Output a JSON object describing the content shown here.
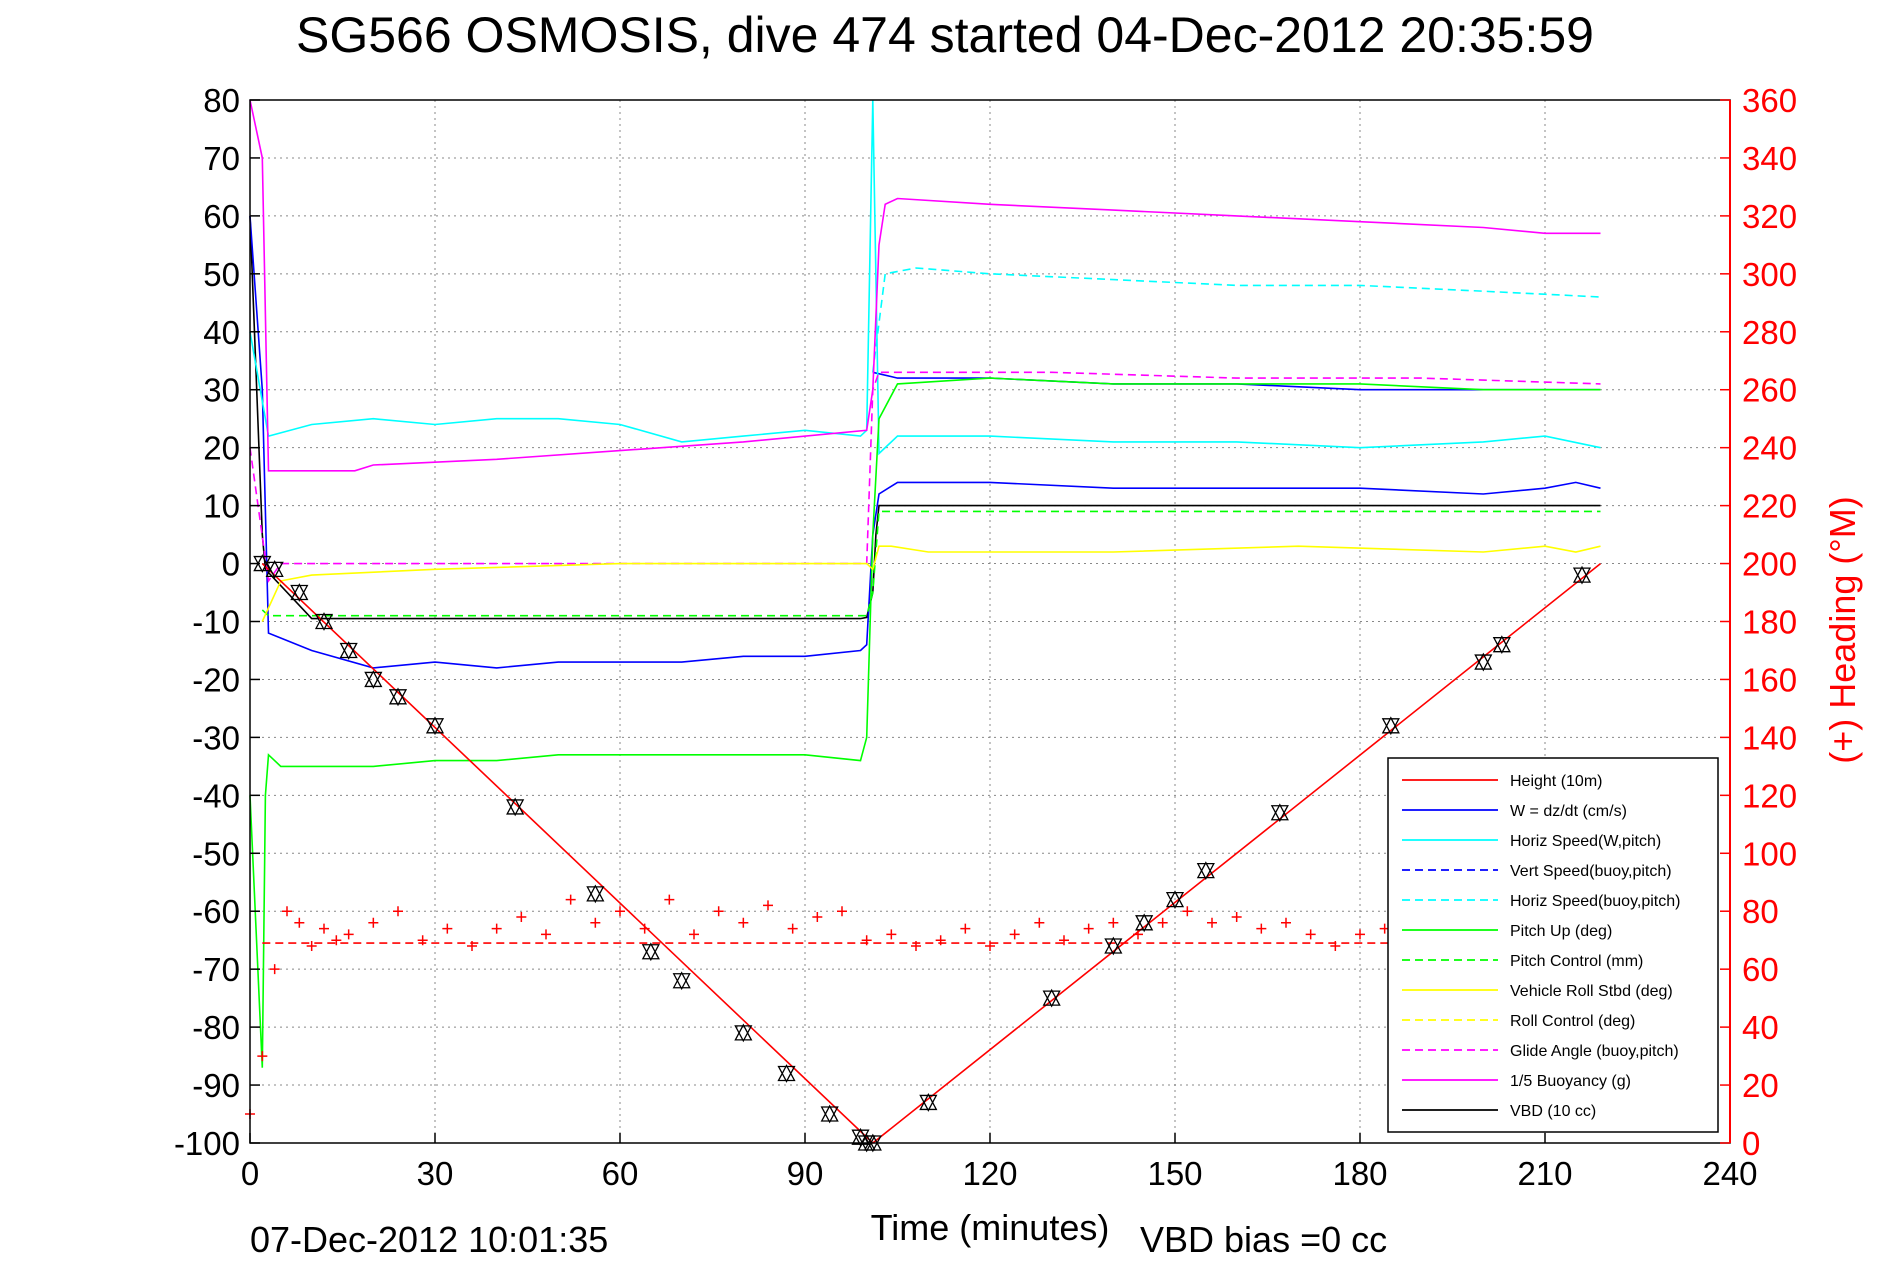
{
  "chart_data": {
    "type": "line",
    "title": "SG566 OSMOSIS, dive 474 started 04-Dec-2012 20:35:59",
    "xlabel": "Time (minutes)",
    "ylabel": "",
    "y2label": "(+) Heading (°M)",
    "xlim": [
      0,
      240
    ],
    "ylim": [
      -100,
      80
    ],
    "y2lim": [
      0,
      360
    ],
    "x_ticks": [
      "0",
      "30",
      "60",
      "90",
      "120",
      "150",
      "180",
      "210",
      "240"
    ],
    "y_ticks": [
      "80",
      "70",
      "60",
      "50",
      "40",
      "30",
      "20",
      "10",
      "0",
      "-10",
      "-20",
      "-30",
      "-40",
      "-50",
      "-60",
      "-70",
      "-80",
      "-90",
      "-100"
    ],
    "y2_ticks": [
      "360",
      "340",
      "320",
      "300",
      "280",
      "260",
      "240",
      "220",
      "200",
      "180",
      "160",
      "140",
      "120",
      "100",
      "80",
      "60",
      "40",
      "20",
      "0"
    ],
    "grid": true,
    "legend_position": "lower-right",
    "legend": [
      {
        "label": "Height (10m)",
        "color": "#ff0000",
        "style": "solid"
      },
      {
        "label": "W = dz/dt (cm/s)",
        "color": "#0000ff",
        "style": "solid"
      },
      {
        "label": "Horiz Speed(W,pitch)",
        "color": "#00ffff",
        "style": "solid"
      },
      {
        "label": "Vert Speed(buoy,pitch)",
        "color": "#0000ff",
        "style": "dashed"
      },
      {
        "label": "Horiz Speed(buoy,pitch)",
        "color": "#00ffff",
        "style": "dashed"
      },
      {
        "label": "Pitch Up (deg)",
        "color": "#00ff00",
        "style": "solid"
      },
      {
        "label": "Pitch Control (mm)",
        "color": "#00ff00",
        "style": "dashed"
      },
      {
        "label": "Vehicle Roll Stbd (deg)",
        "color": "#ffff00",
        "style": "solid"
      },
      {
        "label": "Roll Control (deg)",
        "color": "#ffff00",
        "style": "dashed"
      },
      {
        "label": "Glide Angle (buoy,pitch)",
        "color": "#ff00ff",
        "style": "dashed"
      },
      {
        "label": "1/5 Buoyancy (g)",
        "color": "#ff00ff",
        "style": "solid"
      },
      {
        "label": "VBD (10 cc)",
        "color": "#000000",
        "style": "solid"
      }
    ],
    "series": [
      {
        "x": [
          0,
          2,
          2.5,
          10,
          30,
          50,
          70,
          90,
          99,
          100,
          101,
          101.5,
          102,
          105,
          130,
          160,
          190,
          219
        ],
        "y": [
          60,
          5,
          -1,
          -9.5,
          -9.5,
          -9.5,
          -9.5,
          -9.5,
          -9.5,
          -9.3,
          -5,
          5,
          10,
          10,
          10,
          10,
          10,
          10
        ],
        "color": "#000000",
        "style": "solid"
      },
      {
        "x": [
          0,
          2,
          3,
          10,
          20,
          30,
          40,
          50,
          60,
          70,
          80,
          90,
          99,
          100,
          101,
          102,
          105,
          120,
          140,
          160,
          180,
          200,
          210,
          215,
          219
        ],
        "y": [
          60,
          30,
          -12,
          -15,
          -18,
          -17,
          -18,
          -17,
          -17,
          -17,
          -16,
          -16,
          -15,
          -14,
          5,
          12,
          14,
          14,
          13,
          13,
          13,
          12,
          13,
          14,
          13
        ],
        "color": "#0000ff",
        "style": "solid"
      },
      {
        "x": [
          101,
          105,
          120,
          140,
          160,
          180,
          200,
          219
        ],
        "y": [
          33,
          32,
          32,
          31,
          31,
          30,
          30,
          30
        ],
        "color": "#0000ff",
        "style": "solid"
      },
      {
        "x": [
          0,
          2,
          3,
          10,
          20,
          30,
          40,
          50,
          60,
          70,
          80,
          90,
          99,
          100,
          101,
          102,
          105,
          120,
          140,
          160,
          180,
          200,
          210,
          219
        ],
        "y": [
          40,
          28,
          22,
          24,
          25,
          24,
          25,
          25,
          24,
          21,
          22,
          23,
          22,
          23,
          80,
          19,
          22,
          22,
          21,
          21,
          20,
          21,
          22,
          20
        ],
        "color": "#00ffff",
        "style": "solid"
      },
      {
        "x": [
          101,
          103,
          108,
          120,
          140,
          160,
          180,
          200,
          219
        ],
        "y": [
          33,
          50,
          51,
          50,
          49,
          48,
          48,
          47,
          46
        ],
        "color": "#00ffff",
        "style": "dashed"
      },
      {
        "x": [
          0,
          2,
          2.5,
          3,
          5,
          10,
          20,
          30,
          40,
          50,
          60,
          70,
          80,
          90,
          99,
          100,
          101,
          102,
          105,
          120,
          140,
          160,
          180,
          200,
          219
        ],
        "y": [
          -40,
          -87,
          -40,
          -33,
          -35,
          -35,
          -35,
          -34,
          -34,
          -33,
          -33,
          -33,
          -33,
          -33,
          -34,
          -30,
          5,
          25,
          31,
          32,
          31,
          31,
          31,
          30,
          30
        ],
        "color": "#00ff00",
        "style": "solid"
      },
      {
        "x": [
          2,
          3,
          10,
          30,
          60,
          90,
          100,
          101,
          102,
          105,
          130,
          160,
          190,
          219
        ],
        "y": [
          -8,
          -9,
          -9,
          -9,
          -9,
          -9,
          -9,
          -5,
          9,
          9,
          9,
          9,
          9,
          9
        ],
        "color": "#00ff00",
        "style": "dashed"
      },
      {
        "x": [
          0,
          3,
          5,
          10,
          30,
          60,
          90,
          100,
          101,
          102,
          105,
          130,
          160,
          190,
          219
        ],
        "y": [
          20,
          -3,
          0,
          0,
          0,
          0,
          0,
          0,
          30,
          33,
          33,
          33,
          32,
          32,
          31
        ],
        "color": "#ff00ff",
        "style": "dashed"
      },
      {
        "x": [
          0,
          2,
          3,
          5,
          10,
          17,
          20,
          40,
          60,
          80,
          100,
          101,
          102,
          103,
          105,
          120,
          140,
          160,
          180,
          200,
          210,
          215,
          219
        ],
        "y": [
          80,
          70,
          16,
          16,
          16,
          16,
          17,
          18,
          19.5,
          21,
          23,
          30,
          55,
          62,
          63,
          62,
          61,
          60,
          59,
          58,
          57,
          57,
          57
        ],
        "color": "#ff00ff",
        "style": "solid"
      },
      {
        "x": [
          2,
          5,
          10,
          30,
          60,
          90,
          100,
          101,
          102,
          104,
          110,
          140,
          170,
          200,
          210,
          215,
          219
        ],
        "y": [
          -10,
          -3,
          -2,
          -1,
          0,
          0,
          0,
          -1,
          3,
          3,
          2,
          2,
          3,
          2,
          3,
          2,
          3
        ],
        "color": "#ffff00",
        "style": "solid"
      },
      {
        "x": [
          0,
          2,
          4,
          6,
          8,
          10,
          12,
          14,
          16,
          20,
          24,
          28,
          32,
          36,
          40,
          44,
          48,
          52,
          56,
          60,
          64,
          68,
          72,
          76,
          80,
          84,
          88,
          92,
          96,
          100,
          104,
          108,
          112,
          116,
          120,
          124,
          128,
          132,
          136,
          140,
          144,
          148,
          152,
          156,
          160,
          164,
          168,
          172,
          176,
          180,
          184,
          188,
          192,
          196,
          200,
          204,
          208,
          212,
          216,
          219
        ],
        "y": [
          -95,
          -85,
          -70,
          -60,
          -62,
          -66,
          -63,
          -65,
          -64,
          -62,
          -60,
          -65,
          -63,
          -66,
          -63,
          -61,
          -64,
          -58,
          -62,
          -60,
          -63,
          -58,
          -64,
          -60,
          -62,
          -59,
          -63,
          -61,
          -60,
          -65,
          -64,
          -66,
          -65,
          -63,
          -66,
          -64,
          -62,
          -65,
          -63,
          -62,
          -64,
          -62,
          -60,
          -62,
          -61,
          -63,
          -62,
          -64,
          -66,
          -64,
          -63,
          -62,
          -65,
          -61,
          -63,
          -62,
          -64,
          -65,
          -63,
          -64
        ],
        "color": "#ff0000",
        "style": "plus"
      },
      {
        "x": [
          2,
          219
        ],
        "y": [
          -65.5,
          -65.5
        ],
        "color": "#ff0000",
        "style": "dashed"
      },
      {
        "x": [
          2,
          101,
          219
        ],
        "y": [
          0,
          -100,
          0
        ],
        "color": "#ff0000",
        "style": "solid"
      },
      {
        "x": [
          2,
          4,
          8,
          12,
          16,
          20,
          24,
          30,
          43,
          56,
          65,
          70,
          80,
          87,
          94,
          99,
          100,
          101,
          110,
          130,
          140,
          145,
          150,
          155,
          167,
          185,
          200,
          203,
          216
        ],
        "y": [
          0,
          -1,
          -5,
          -10,
          -15,
          -20,
          -23,
          -28,
          -42,
          -57,
          -67,
          -72,
          -81,
          -88,
          -95,
          -99,
          -100,
          -100,
          -93,
          -75,
          -66,
          -62,
          -58,
          -53,
          -43,
          -28,
          -17,
          -14,
          -2
        ],
        "color": "#000000",
        "style": "marker"
      }
    ]
  },
  "footer": {
    "timestamp": "07-Dec-2012 10:01:35",
    "vbd_bias": "VBD bias =0 cc"
  }
}
